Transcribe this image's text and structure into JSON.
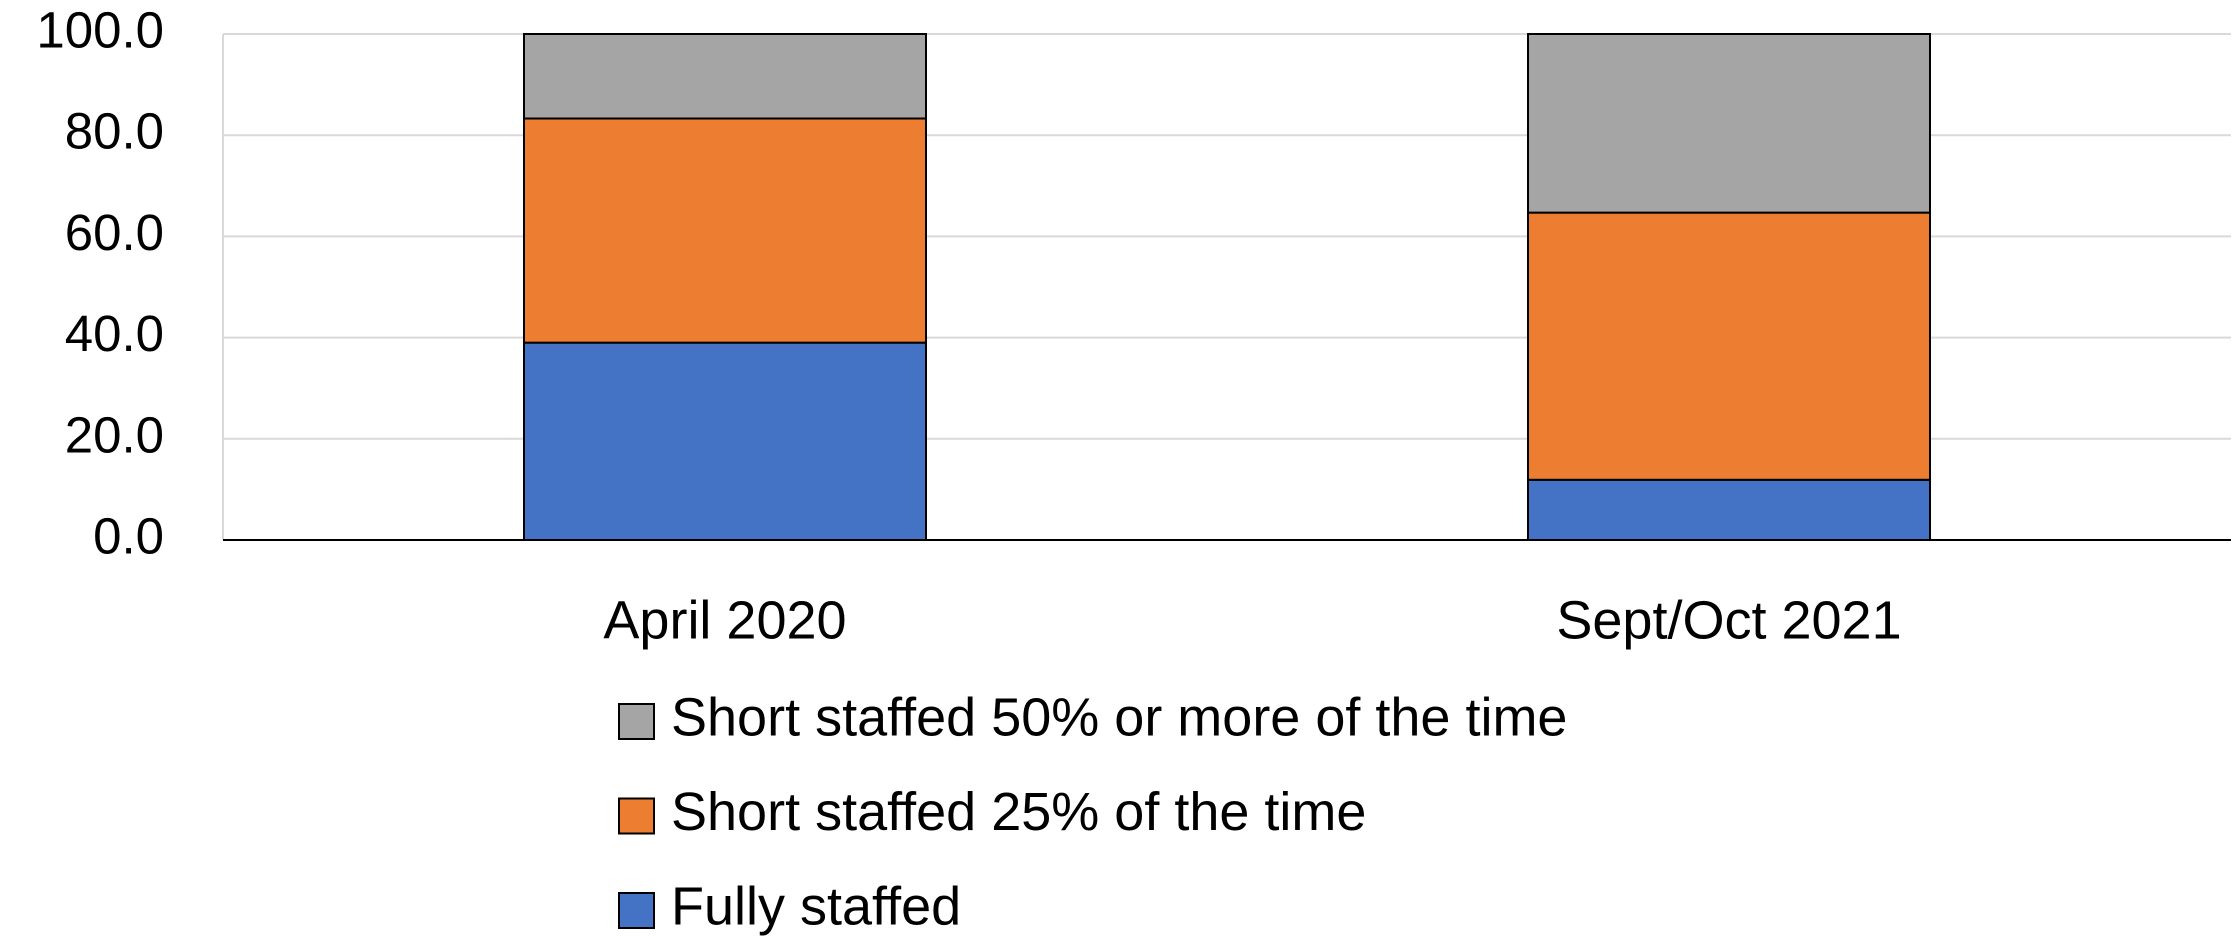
{
  "chart_data": {
    "type": "stacked_bar",
    "categories": [
      "April 2020",
      "Sept/Oct 2021"
    ],
    "series": [
      {
        "name": "Fully staffed",
        "color": "#4472c4",
        "values": [
          39.0,
          11.9
        ]
      },
      {
        "name": "Short staffed 25% of the time",
        "color": "#ed7d31",
        "values": [
          44.3,
          52.8
        ]
      },
      {
        "name": "Short staffed 50% or more of the time",
        "color": "#a5a5a5",
        "values": [
          16.7,
          35.3
        ]
      }
    ],
    "ylim": [
      0,
      100
    ],
    "yticks": [
      {
        "value": 0,
        "label": "0.0"
      },
      {
        "value": 20,
        "label": "20.0"
      },
      {
        "value": 40,
        "label": "40.0"
      },
      {
        "value": 60,
        "label": "60.0"
      },
      {
        "value": 80,
        "label": "80.0"
      },
      {
        "value": 100,
        "label": "100.0"
      }
    ],
    "grid": true,
    "legend": "bottom"
  }
}
